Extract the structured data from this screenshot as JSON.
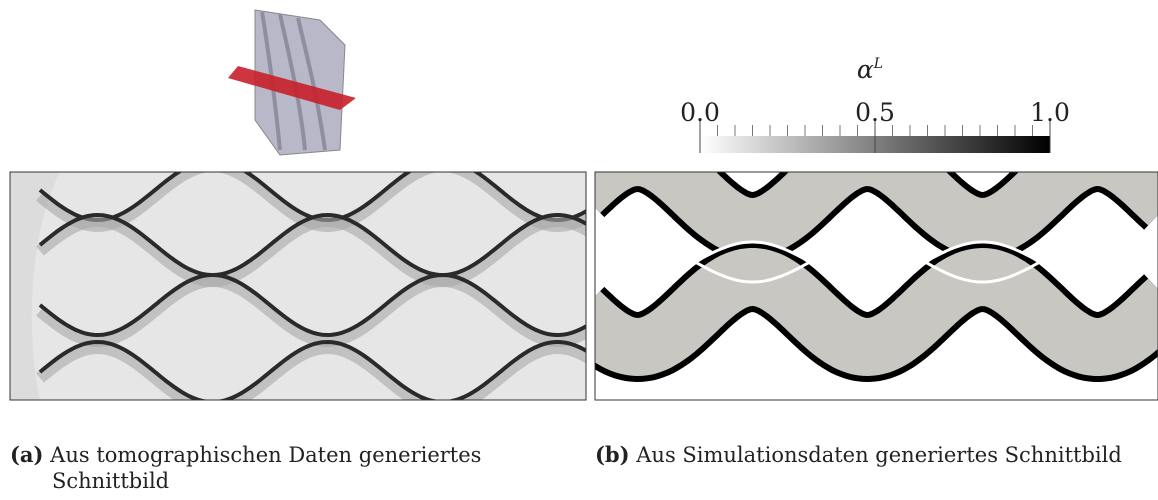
{
  "figure": {
    "colorbar": {
      "symbol": "α",
      "superscript": "L",
      "lim": [
        0,
        1
      ],
      "ticks": [
        {
          "value": 0,
          "label": "0.0"
        },
        {
          "value": 0.5,
          "label": "0.5"
        },
        {
          "value": 1,
          "label": "1.0"
        }
      ]
    },
    "captions": [
      {
        "label": "(a)",
        "text": "Aus tomographischen Daten generiertes",
        "text2": "Schnittbild"
      },
      {
        "label": "(b)",
        "text": "Aus Simulationsdaten generiertes Schnittbild"
      }
    ]
  }
}
